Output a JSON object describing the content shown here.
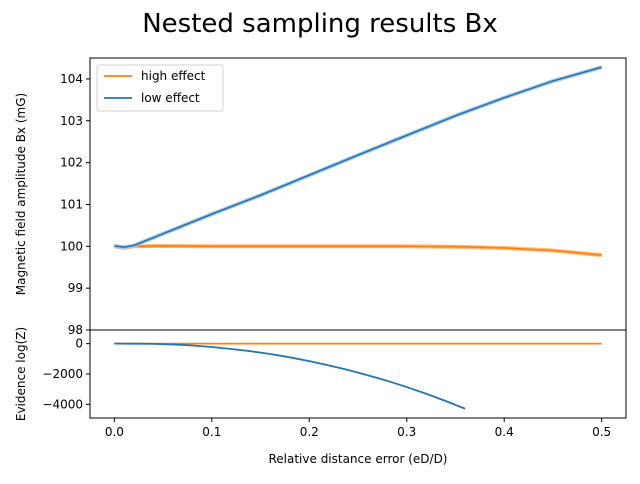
{
  "title": "Nested sampling results Bx",
  "colors": {
    "high_effect": "#ff7f0e",
    "low_effect": "#1f77b4",
    "band_low": "#aec7e8",
    "band_high": "#ffbb78"
  },
  "chart_data": [
    {
      "type": "line",
      "panel": "top",
      "ylabel": "Magnetic field amplitude Bx (mG)",
      "xlabel": "",
      "xlim": [
        -0.025,
        0.525
      ],
      "ylim": [
        98,
        104.5
      ],
      "yticks": [
        98,
        99,
        100,
        101,
        102,
        103,
        104
      ],
      "legend": "top-left",
      "grid": false,
      "series": [
        {
          "name": "high effect",
          "color": "#ff7f0e",
          "x": [
            0,
            0.01,
            0.02,
            0.05,
            0.1,
            0.15,
            0.2,
            0.25,
            0.3,
            0.35,
            0.4,
            0.45,
            0.5
          ],
          "y": [
            100.0,
            99.96,
            100.0,
            100.01,
            100.0,
            100.0,
            100.0,
            100.0,
            100.0,
            99.99,
            99.96,
            99.9,
            99.79
          ]
        },
        {
          "name": "low effect",
          "color": "#1f77b4",
          "x": [
            0,
            0.01,
            0.02,
            0.05,
            0.1,
            0.15,
            0.2,
            0.25,
            0.3,
            0.35,
            0.4,
            0.45,
            0.5
          ],
          "y": [
            100.01,
            99.98,
            100.02,
            100.3,
            100.77,
            101.22,
            101.7,
            102.18,
            102.65,
            103.12,
            103.55,
            103.95,
            104.28
          ]
        }
      ]
    },
    {
      "type": "line",
      "panel": "bottom",
      "ylabel": "Evidence log(Z)",
      "xlabel": "Relative distance error  (eD/D)",
      "xlim": [
        -0.025,
        0.525
      ],
      "ylim": [
        -4900,
        900
      ],
      "yticks": [
        0,
        -2000,
        -4000
      ],
      "ytick_labels": [
        "0",
        "−2000",
        "−4000"
      ],
      "xticks": [
        0.0,
        0.1,
        0.2,
        0.3,
        0.4,
        0.5
      ],
      "xtick_labels": [
        "0.0",
        "0.1",
        "0.2",
        "0.3",
        "0.4",
        "0.5"
      ],
      "grid": false,
      "series": [
        {
          "color": "#ff7f0e",
          "x": [
            0,
            0.1,
            0.2,
            0.3,
            0.4,
            0.5
          ],
          "y": [
            0,
            0,
            0,
            0,
            0,
            0
          ]
        },
        {
          "color": "#1f77b4",
          "x": [
            0,
            0.02,
            0.04,
            0.06,
            0.08,
            0.1,
            0.12,
            0.14,
            0.16,
            0.18,
            0.2,
            0.22,
            0.24,
            0.26,
            0.28,
            0.3,
            0.32,
            0.34,
            0.36
          ],
          "y": [
            0,
            -2,
            -15,
            -55,
            -120,
            -220,
            -350,
            -500,
            -680,
            -900,
            -1150,
            -1430,
            -1740,
            -2080,
            -2450,
            -2860,
            -3300,
            -3780,
            -4290
          ]
        }
      ]
    }
  ]
}
